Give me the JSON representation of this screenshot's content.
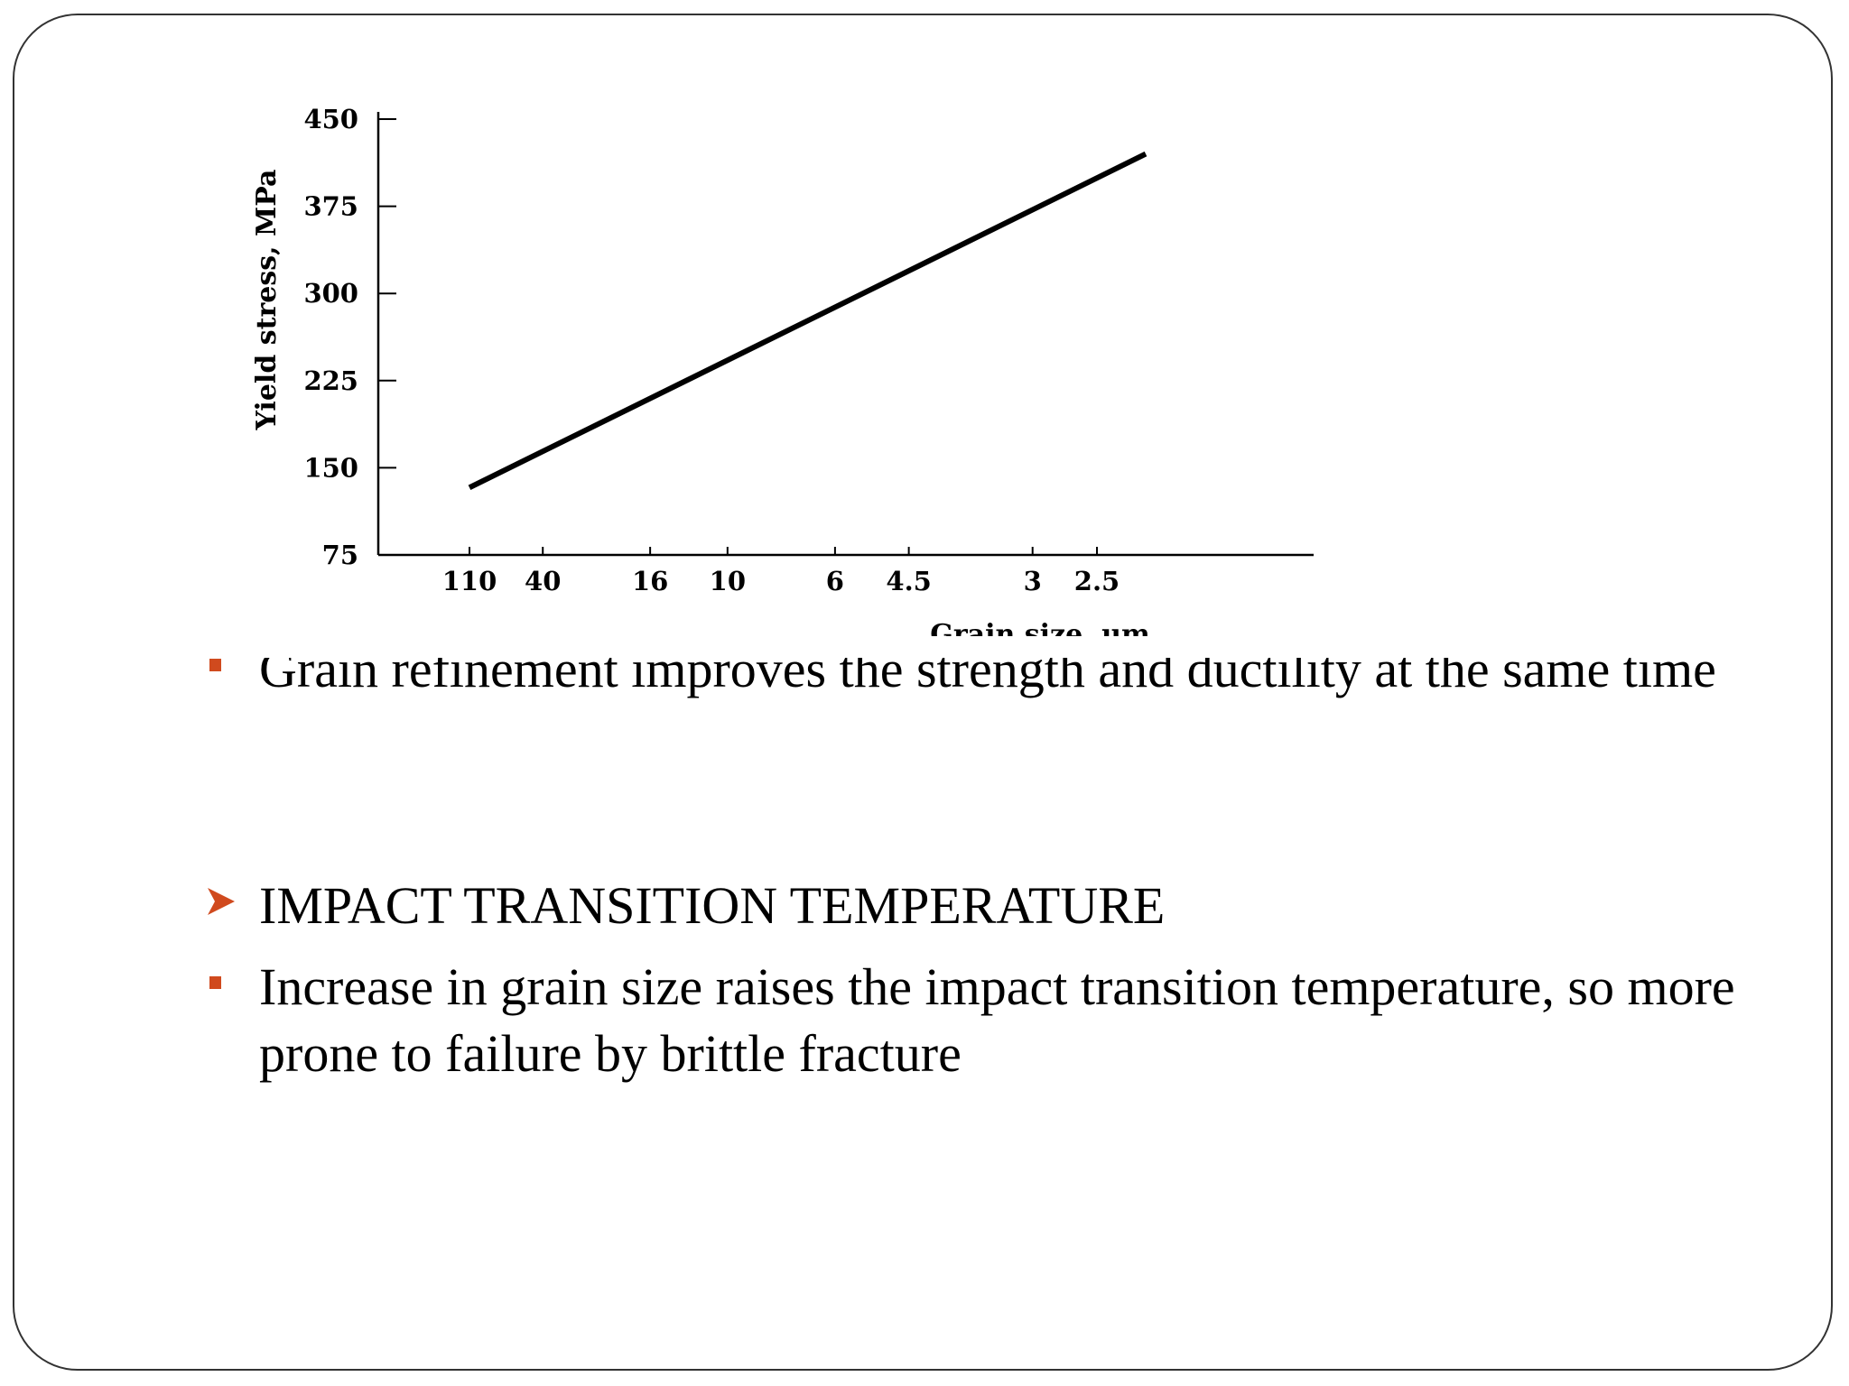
{
  "slide": {
    "bullets": [
      {
        "marker": "square",
        "text": "Grain refinement improves the strength and ductility at the same time"
      },
      {
        "marker": "arrow",
        "text": "IMPACT TRANSITION TEMPERATURE"
      },
      {
        "marker": "square",
        "text": "Increase in grain size raises the impact transition temperature, so more prone to failure by brittle fracture"
      }
    ],
    "colors": {
      "marker": "#d04a1e",
      "text": "#000000",
      "frame": "#333333"
    }
  },
  "chart_data": {
    "type": "line",
    "title": "",
    "xlabel": "Grain size, μm",
    "ylabel": "Yield stress, MPa",
    "x_scale": "inverse square root of grain size",
    "x_tick_labels": [
      "110",
      "40",
      "16",
      "10",
      "6",
      "4.5",
      "3",
      "2.5"
    ],
    "y_ticks": [
      75,
      150,
      225,
      300,
      375,
      450
    ],
    "y_tick_labels": [
      "75",
      "150",
      "225",
      "300",
      "375",
      "450"
    ],
    "ylim": [
      75,
      450
    ],
    "grid": false,
    "legend": "none",
    "series": [
      {
        "x": [
          110,
          2.2
        ],
        "y": [
          133,
          420
        ]
      }
    ]
  }
}
